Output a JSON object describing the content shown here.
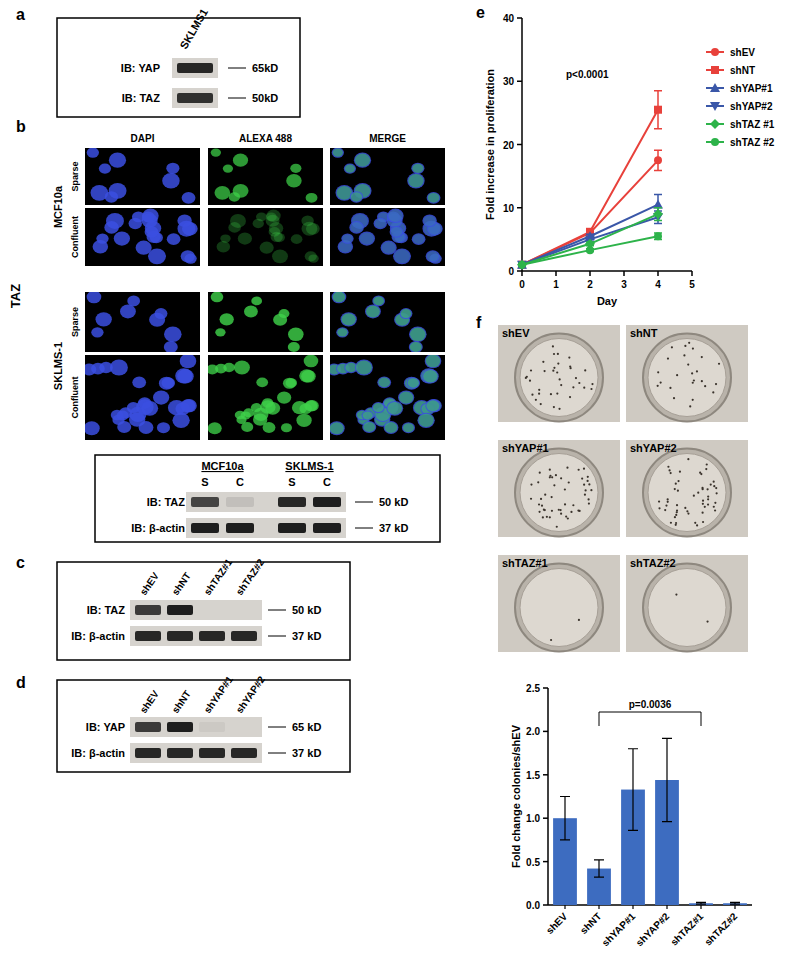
{
  "panels": {
    "a": {
      "label": "a",
      "lanes": [
        "SKLMS1"
      ],
      "rows": [
        {
          "name": "IB: YAP",
          "size": "65kD",
          "bands": [
            0.9
          ]
        },
        {
          "name": "IB: TAZ",
          "size": "50kD",
          "bands": [
            0.85
          ]
        }
      ]
    },
    "b": {
      "label": "b",
      "stain": "TAZ",
      "columns": [
        "DAPI",
        "ALEXA 488",
        "MERGE"
      ],
      "groups": [
        {
          "name": "MCF10a",
          "rows": [
            {
              "name": "Sparse",
              "signal": 0.8
            },
            {
              "name": "Confluent",
              "signal": 0.3
            }
          ]
        },
        {
          "name": "SKLMS-1",
          "rows": [
            {
              "name": "Sparse",
              "signal": 0.9
            },
            {
              "name": "Confluent",
              "signal": 0.85
            }
          ]
        }
      ],
      "blot": {
        "groups": [
          "MCF10a",
          "SKLMS-1"
        ],
        "lanes": [
          "S",
          "C",
          "S",
          "C"
        ],
        "rows": [
          {
            "name": "IB: TAZ",
            "size": "50 kD",
            "bands": [
              0.75,
              0.1,
              0.9,
              0.95
            ]
          },
          {
            "name": "IB: β-actin",
            "size": "37 kD",
            "bands": [
              0.95,
              0.95,
              0.95,
              0.95
            ]
          }
        ]
      }
    },
    "c": {
      "label": "c",
      "lanes": [
        "shEV",
        "shNT",
        "shTAZ#1",
        "shTAZ#2"
      ],
      "rows": [
        {
          "name": "IB: TAZ",
          "size": "50 kD",
          "bands": [
            0.8,
            0.95,
            0,
            0
          ]
        },
        {
          "name": "IB: β-actin",
          "size": "37 kD",
          "bands": [
            0.9,
            0.9,
            0.9,
            0.9
          ]
        }
      ]
    },
    "d": {
      "label": "d",
      "lanes": [
        "shEV",
        "shNT",
        "shYAP#1",
        "shYAP#2"
      ],
      "rows": [
        {
          "name": "IB: YAP",
          "size": "65 kD",
          "bands": [
            0.8,
            0.95,
            0.05,
            0
          ]
        },
        {
          "name": "IB: β-actin",
          "size": "37 kD",
          "bands": [
            0.9,
            0.9,
            0.9,
            0.9
          ]
        }
      ]
    },
    "e": {
      "label": "e"
    },
    "f": {
      "label": "f",
      "images": [
        {
          "name": "shEV",
          "colonies": 0.5
        },
        {
          "name": "shNT",
          "colonies": 0.35
        },
        {
          "name": "shYAP#1",
          "colonies": 0.7
        },
        {
          "name": "shYAP#2",
          "colonies": 0.75
        },
        {
          "name": "shTAZ#1",
          "colonies": 0.03
        },
        {
          "name": "shTAZ#2",
          "colonies": 0.03
        }
      ]
    }
  },
  "chart_data": [
    {
      "type": "line",
      "x": [
        0,
        2,
        4
      ],
      "xlim": [
        0,
        5
      ],
      "xticks": [
        0,
        1,
        2,
        3,
        4,
        5
      ],
      "ylim": [
        0,
        40
      ],
      "yticks": [
        0,
        10,
        20,
        30,
        40
      ],
      "x_label": "Day",
      "y_label": "Fold increase in proliferation",
      "annotations": [
        "p<0.0001"
      ],
      "legend": "right",
      "series": [
        {
          "name": "shEV",
          "color": "#e8413b",
          "marker": "circle",
          "values": [
            1,
            6,
            17.5
          ],
          "errors": [
            0,
            0.3,
            1.6
          ]
        },
        {
          "name": "shNT",
          "color": "#e8413b",
          "marker": "square",
          "values": [
            1,
            6.2,
            25.5
          ],
          "errors": [
            0,
            0.3,
            3
          ]
        },
        {
          "name": "shYAP#1",
          "color": "#3a57a8",
          "marker": "triangle",
          "values": [
            1,
            5.5,
            10.5
          ],
          "errors": [
            0,
            0.3,
            1.6
          ]
        },
        {
          "name": "shYAP#2",
          "color": "#3a57a8",
          "marker": "triangle-down",
          "values": [
            1,
            5,
            8.5
          ],
          "errors": [
            0,
            0.3,
            1
          ]
        },
        {
          "name": "shTAZ #1",
          "color": "#2db34a",
          "marker": "diamond",
          "values": [
            1,
            4.3,
            9
          ],
          "errors": [
            0,
            0.3,
            1
          ]
        },
        {
          "name": "shTAZ #2",
          "color": "#2db34a",
          "marker": "circle",
          "values": [
            1,
            3.3,
            5.5
          ],
          "errors": [
            0,
            0.2,
            0.5
          ]
        }
      ]
    },
    {
      "type": "bar",
      "categories": [
        "shEV",
        "shNT",
        "shYAP#1",
        "shYAP#2",
        "shTAZ#1",
        "shTAZ#2"
      ],
      "values": [
        1.0,
        0.42,
        1.33,
        1.44,
        0.02,
        0.02
      ],
      "errors": [
        0.25,
        0.1,
        0.47,
        0.48,
        0.01,
        0.01
      ],
      "color": "#3d6cc0",
      "ylim": [
        0,
        2.5
      ],
      "yticks": [
        {
          "value": 0,
          "label": "0.0"
        },
        {
          "value": 0.5,
          "label": "0.5"
        },
        {
          "value": 1,
          "label": "1.0"
        },
        {
          "value": 1.5,
          "label": "1.5"
        },
        {
          "value": 2,
          "label": "2.0"
        },
        {
          "value": 2.5,
          "label": "2.5"
        }
      ],
      "y_label": "Fold change colonies/shEV",
      "annotations": [
        {
          "text": "p=0.0036",
          "from": 1,
          "to": 4
        }
      ]
    }
  ]
}
